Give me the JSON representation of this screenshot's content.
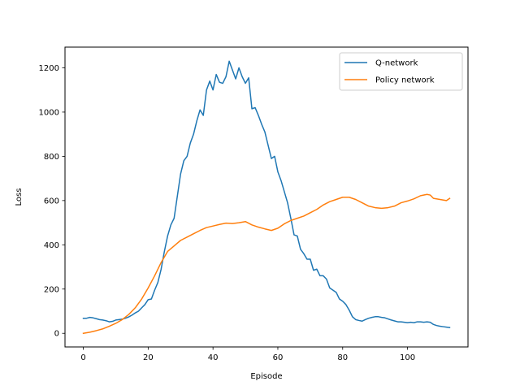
{
  "chart_data": {
    "type": "line",
    "title": "",
    "xlabel": "Episode",
    "ylabel": "Loss",
    "xlim": [
      -5.65,
      118.65
    ],
    "ylim": [
      -61.6,
      1293.6
    ],
    "xticks": [
      0,
      20,
      40,
      60,
      80,
      100
    ],
    "yticks": [
      0,
      200,
      400,
      600,
      800,
      1000,
      1200
    ],
    "grid": false,
    "legend_position": "top-right",
    "series": [
      {
        "name": "Q-network",
        "color": "#1f77b4",
        "points": [
          [
            0,
            68
          ],
          [
            1,
            68
          ],
          [
            2,
            72
          ],
          [
            3,
            70
          ],
          [
            4,
            66
          ],
          [
            5,
            62
          ],
          [
            6,
            60
          ],
          [
            7,
            57
          ],
          [
            8,
            52
          ],
          [
            9,
            54
          ],
          [
            10,
            60
          ],
          [
            11,
            62
          ],
          [
            12,
            64
          ],
          [
            13,
            68
          ],
          [
            14,
            74
          ],
          [
            15,
            82
          ],
          [
            16,
            92
          ],
          [
            17,
            100
          ],
          [
            18,
            115
          ],
          [
            19,
            130
          ],
          [
            20,
            152
          ],
          [
            21,
            155
          ],
          [
            22,
            195
          ],
          [
            23,
            230
          ],
          [
            24,
            290
          ],
          [
            25,
            370
          ],
          [
            26,
            440
          ],
          [
            27,
            490
          ],
          [
            28,
            520
          ],
          [
            29,
            620
          ],
          [
            30,
            720
          ],
          [
            31,
            780
          ],
          [
            32,
            800
          ],
          [
            33,
            860
          ],
          [
            34,
            900
          ],
          [
            35,
            960
          ],
          [
            36,
            1010
          ],
          [
            37,
            985
          ],
          [
            38,
            1100
          ],
          [
            39,
            1140
          ],
          [
            40,
            1100
          ],
          [
            41,
            1170
          ],
          [
            42,
            1135
          ],
          [
            43,
            1130
          ],
          [
            44,
            1160
          ],
          [
            45,
            1230
          ],
          [
            46,
            1190
          ],
          [
            47,
            1150
          ],
          [
            48,
            1200
          ],
          [
            49,
            1160
          ],
          [
            50,
            1130
          ],
          [
            51,
            1155
          ],
          [
            52,
            1015
          ],
          [
            53,
            1020
          ],
          [
            54,
            985
          ],
          [
            55,
            945
          ],
          [
            56,
            910
          ],
          [
            57,
            850
          ],
          [
            58,
            790
          ],
          [
            59,
            800
          ],
          [
            60,
            730
          ],
          [
            61,
            690
          ],
          [
            62,
            640
          ],
          [
            63,
            590
          ],
          [
            64,
            520
          ],
          [
            65,
            445
          ],
          [
            66,
            440
          ],
          [
            67,
            380
          ],
          [
            68,
            360
          ],
          [
            69,
            335
          ],
          [
            70,
            335
          ],
          [
            71,
            285
          ],
          [
            72,
            290
          ],
          [
            73,
            260
          ],
          [
            74,
            260
          ],
          [
            75,
            245
          ],
          [
            76,
            205
          ],
          [
            77,
            195
          ],
          [
            78,
            185
          ],
          [
            79,
            155
          ],
          [
            80,
            145
          ],
          [
            81,
            130
          ],
          [
            82,
            105
          ],
          [
            83,
            75
          ],
          [
            84,
            62
          ],
          [
            85,
            58
          ],
          [
            86,
            55
          ],
          [
            87,
            62
          ],
          [
            88,
            68
          ],
          [
            89,
            72
          ],
          [
            90,
            75
          ],
          [
            91,
            75
          ],
          [
            92,
            72
          ],
          [
            93,
            70
          ],
          [
            94,
            65
          ],
          [
            95,
            60
          ],
          [
            96,
            56
          ],
          [
            97,
            52
          ],
          [
            98,
            52
          ],
          [
            99,
            50
          ],
          [
            100,
            48
          ],
          [
            101,
            50
          ],
          [
            102,
            48
          ],
          [
            103,
            52
          ],
          [
            104,
            52
          ],
          [
            105,
            50
          ],
          [
            106,
            52
          ],
          [
            107,
            50
          ],
          [
            108,
            40
          ],
          [
            109,
            35
          ],
          [
            110,
            32
          ],
          [
            111,
            30
          ],
          [
            112,
            28
          ],
          [
            113,
            26
          ]
        ]
      },
      {
        "name": "Policy network",
        "color": "#ff7f0e",
        "points": [
          [
            0,
            0
          ],
          [
            2,
            5
          ],
          [
            4,
            12
          ],
          [
            6,
            20
          ],
          [
            8,
            32
          ],
          [
            10,
            45
          ],
          [
            12,
            62
          ],
          [
            14,
            85
          ],
          [
            16,
            115
          ],
          [
            18,
            155
          ],
          [
            20,
            205
          ],
          [
            22,
            260
          ],
          [
            24,
            320
          ],
          [
            26,
            370
          ],
          [
            28,
            395
          ],
          [
            30,
            420
          ],
          [
            32,
            435
          ],
          [
            34,
            450
          ],
          [
            36,
            465
          ],
          [
            38,
            478
          ],
          [
            40,
            485
          ],
          [
            42,
            492
          ],
          [
            44,
            498
          ],
          [
            46,
            496
          ],
          [
            48,
            500
          ],
          [
            50,
            505
          ],
          [
            52,
            490
          ],
          [
            54,
            480
          ],
          [
            56,
            472
          ],
          [
            58,
            465
          ],
          [
            60,
            475
          ],
          [
            62,
            495
          ],
          [
            64,
            510
          ],
          [
            66,
            520
          ],
          [
            68,
            530
          ],
          [
            70,
            545
          ],
          [
            72,
            560
          ],
          [
            74,
            580
          ],
          [
            76,
            595
          ],
          [
            78,
            605
          ],
          [
            80,
            615
          ],
          [
            82,
            615
          ],
          [
            84,
            605
          ],
          [
            86,
            590
          ],
          [
            88,
            575
          ],
          [
            90,
            568
          ],
          [
            92,
            565
          ],
          [
            94,
            568
          ],
          [
            96,
            575
          ],
          [
            98,
            590
          ],
          [
            100,
            598
          ],
          [
            102,
            608
          ],
          [
            104,
            622
          ],
          [
            106,
            628
          ],
          [
            107,
            625
          ],
          [
            108,
            610
          ],
          [
            110,
            605
          ],
          [
            112,
            600
          ],
          [
            113,
            610
          ]
        ]
      }
    ]
  }
}
